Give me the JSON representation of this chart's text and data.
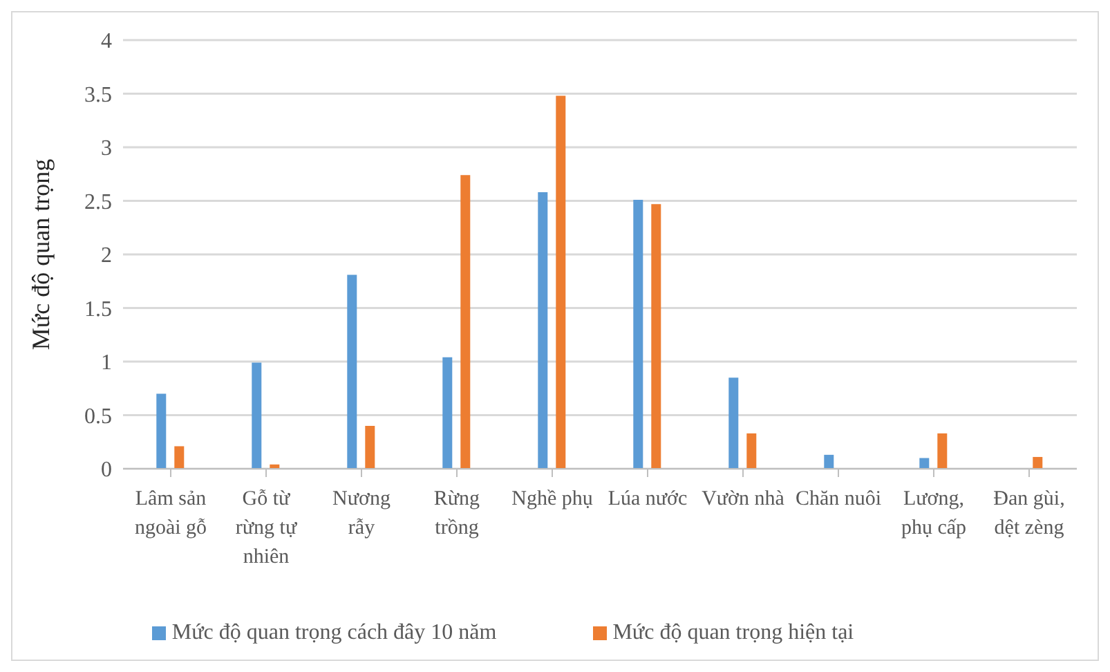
{
  "chart_data": {
    "type": "bar",
    "ylabel": "Mức độ quan trọng",
    "categories": [
      "Lâm sản ngoài gỗ",
      "Gỗ từ rừng tự nhiên",
      "Nương rẫy",
      "Rừng trồng",
      "Nghề phụ",
      "Lúa nước",
      "Vườn nhà",
      "Chăn nuôi",
      "Lương, phụ cấp",
      "Đan gùi, dệt zèng"
    ],
    "series": [
      {
        "name": "Mức độ quan trọng cách đây 10 năm",
        "color": "#5b9bd5",
        "values": [
          0.7,
          0.99,
          1.81,
          1.04,
          2.58,
          2.51,
          0.85,
          0.13,
          0.1,
          null
        ]
      },
      {
        "name": "Mức độ quan trọng hiện tại",
        "color": "#ed7d31",
        "values": [
          0.21,
          0.04,
          0.4,
          2.74,
          3.48,
          2.47,
          0.33,
          null,
          0.33,
          0.11
        ]
      }
    ],
    "ylim": [
      0,
      4
    ],
    "yticks": [
      0,
      0.5,
      1,
      1.5,
      2,
      2.5,
      3,
      3.5,
      4
    ],
    "grid": "y",
    "legend": "bottom"
  }
}
